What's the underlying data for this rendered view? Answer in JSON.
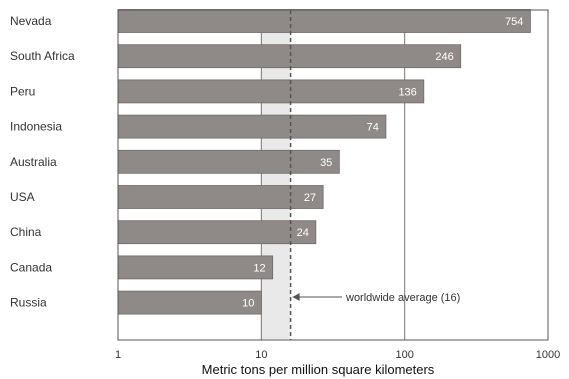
{
  "chart_data": {
    "type": "bar",
    "orientation": "horizontal",
    "x_scale": "log",
    "categories": [
      "Nevada",
      "South Africa",
      "Peru",
      "Indonesia",
      "Australia",
      "USA",
      "China",
      "Canada",
      "Russia"
    ],
    "values": [
      754,
      246,
      136,
      74,
      35,
      27,
      24,
      12,
      10
    ],
    "value_labels": [
      "754",
      "246",
      "136",
      "74",
      "35",
      "27",
      "24",
      "12",
      "10"
    ],
    "xlabel": "Metric tons per million square kilometers",
    "xlim": [
      1,
      1000
    ],
    "xticks": [
      1,
      10,
      100,
      1000
    ],
    "xtick_labels": [
      "1",
      "10",
      "100",
      "1000"
    ],
    "grid": "vertical lines at decades",
    "reference_line": {
      "value": 16,
      "label": "worldwide average (16)",
      "style": "dashed"
    },
    "bar_color": "#8f8a88",
    "shade_color": "#e9e9e9"
  }
}
